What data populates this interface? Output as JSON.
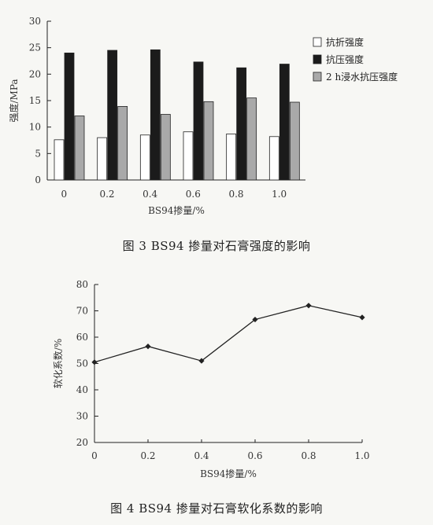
{
  "chart_data": [
    {
      "type": "bar",
      "caption": "图 3 BS94 掺量对石膏强度的影响",
      "xlabel": "BS94掺量/%",
      "ylabel": "强度/MPa",
      "ylim": [
        0,
        30
      ],
      "yticks": [
        0,
        5,
        10,
        15,
        20,
        25,
        30
      ],
      "categories": [
        "0",
        "0.2",
        "0.4",
        "0.6",
        "0.8",
        "1.0"
      ],
      "series": [
        {
          "name": "抗折强度",
          "values": [
            7.6,
            8.0,
            8.5,
            9.1,
            8.7,
            8.2
          ],
          "color": "#ffffff"
        },
        {
          "name": "抗压强度",
          "values": [
            24.0,
            24.5,
            24.6,
            22.3,
            21.2,
            21.9
          ],
          "color": "#1b1b1b"
        },
        {
          "name": "2 h浸水抗压强度",
          "values": [
            12.1,
            13.9,
            12.4,
            14.8,
            15.5,
            14.7
          ],
          "color": "#a9a9a9"
        }
      ],
      "legend_position": "right",
      "grid": false
    },
    {
      "type": "line",
      "caption": "图 4 BS94 掺量对石膏软化系数的影响",
      "xlabel": "BS94掺量/%",
      "ylabel": "软化系数/%",
      "ylim": [
        20,
        80
      ],
      "yticks": [
        20,
        30,
        40,
        50,
        60,
        70,
        80
      ],
      "x": [
        "0",
        "0.2",
        "0.4",
        "0.6",
        "0.8",
        "1.0"
      ],
      "values": [
        50.5,
        56.5,
        51.0,
        66.7,
        72.0,
        67.5
      ],
      "marker": "diamond",
      "grid": false
    }
  ]
}
